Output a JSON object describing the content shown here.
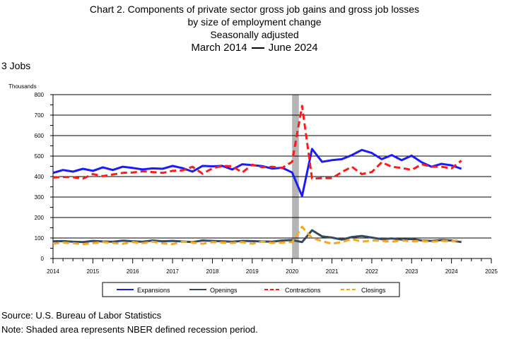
{
  "title": {
    "line1": "Chart 2. Components of private sector gross job gains and gross job losses",
    "line2": "by size of employment change",
    "line3": "Seasonally adjusted",
    "date_start": "March 2014",
    "date_end": "June 2024"
  },
  "subhead": "3 Jobs",
  "footer": {
    "source": "Source: U.S. Bureau of Labor Statistics",
    "note": "Note: Shaded area represents NBER defined recession period."
  },
  "chart_data": {
    "type": "line",
    "ylabel": "Thousands",
    "ylim": [
      0,
      800
    ],
    "yticks": [
      0,
      100,
      200,
      300,
      400,
      500,
      600,
      700,
      800
    ],
    "xlim": [
      2014,
      2025
    ],
    "xticks": [
      2014,
      2015,
      2016,
      2017,
      2018,
      2019,
      2020,
      2021,
      2022,
      2023,
      2024,
      2025
    ],
    "grid": "horizontal",
    "legend_position": "bottom",
    "recession": {
      "start": 2020.0,
      "end": 2020.17
    },
    "x": [
      2014.0,
      2014.25,
      2014.5,
      2014.75,
      2015.0,
      2015.25,
      2015.5,
      2015.75,
      2016.0,
      2016.25,
      2016.5,
      2016.75,
      2017.0,
      2017.25,
      2017.5,
      2017.75,
      2018.0,
      2018.25,
      2018.5,
      2018.75,
      2019.0,
      2019.25,
      2019.5,
      2019.75,
      2020.0,
      2020.25,
      2020.5,
      2020.75,
      2021.0,
      2021.25,
      2021.5,
      2021.75,
      2022.0,
      2022.25,
      2022.5,
      2022.75,
      2023.0,
      2023.25,
      2023.5,
      2023.75,
      2024.0,
      2024.25
    ],
    "series": [
      {
        "name": "Expansions",
        "color": "#1a1aff",
        "style": "solid",
        "values": [
          418,
          432,
          424,
          438,
          428,
          445,
          432,
          448,
          442,
          435,
          440,
          438,
          452,
          441,
          424,
          452,
          450,
          452,
          435,
          460,
          456,
          451,
          439,
          443,
          420,
          305,
          535,
          472,
          480,
          485,
          505,
          530,
          515,
          485,
          505,
          480,
          502,
          470,
          448,
          462,
          455,
          438
        ]
      },
      {
        "name": "Openings",
        "color": "#34495e",
        "style": "solid",
        "values": [
          84,
          85,
          82,
          80,
          86,
          83,
          82,
          87,
          84,
          82,
          88,
          84,
          86,
          83,
          80,
          88,
          86,
          84,
          82,
          86,
          85,
          83,
          82,
          88,
          90,
          80,
          138,
          108,
          102,
          92,
          105,
          110,
          102,
          94,
          98,
          92,
          95,
          88,
          86,
          90,
          88,
          80
        ]
      },
      {
        "name": "Contractions",
        "color": "#ff1a1a",
        "style": "dashed",
        "values": [
          395,
          398,
          397,
          390,
          412,
          402,
          410,
          418,
          420,
          426,
          422,
          418,
          428,
          430,
          448,
          414,
          440,
          452,
          450,
          420,
          458,
          445,
          448,
          442,
          472,
          745,
          390,
          392,
          392,
          422,
          448,
          412,
          422,
          470,
          448,
          442,
          432,
          460,
          448,
          448,
          440,
          478
        ]
      },
      {
        "name": "Closings",
        "color": "#f5a623",
        "style": "dashed",
        "values": [
          72,
          78,
          75,
          70,
          75,
          80,
          76,
          72,
          80,
          75,
          82,
          74,
          70,
          82,
          78,
          72,
          80,
          78,
          76,
          80,
          72,
          82,
          76,
          78,
          80,
          155,
          100,
          85,
          72,
          80,
          95,
          82,
          88,
          86,
          82,
          88,
          84,
          86,
          82,
          86,
          84,
          92
        ]
      }
    ]
  }
}
